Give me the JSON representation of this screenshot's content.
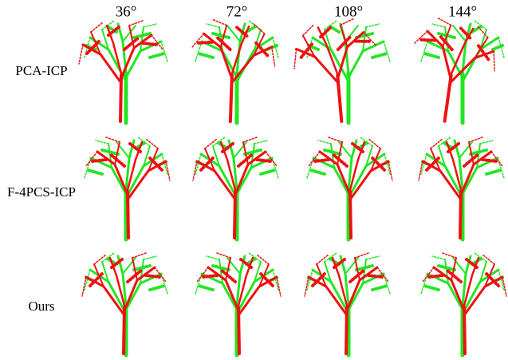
{
  "columns": [
    "36°",
    "72°",
    "108°",
    "144°"
  ],
  "rows": [
    "PCA-ICP",
    "F-4PCS-ICP",
    "Ours"
  ]
}
